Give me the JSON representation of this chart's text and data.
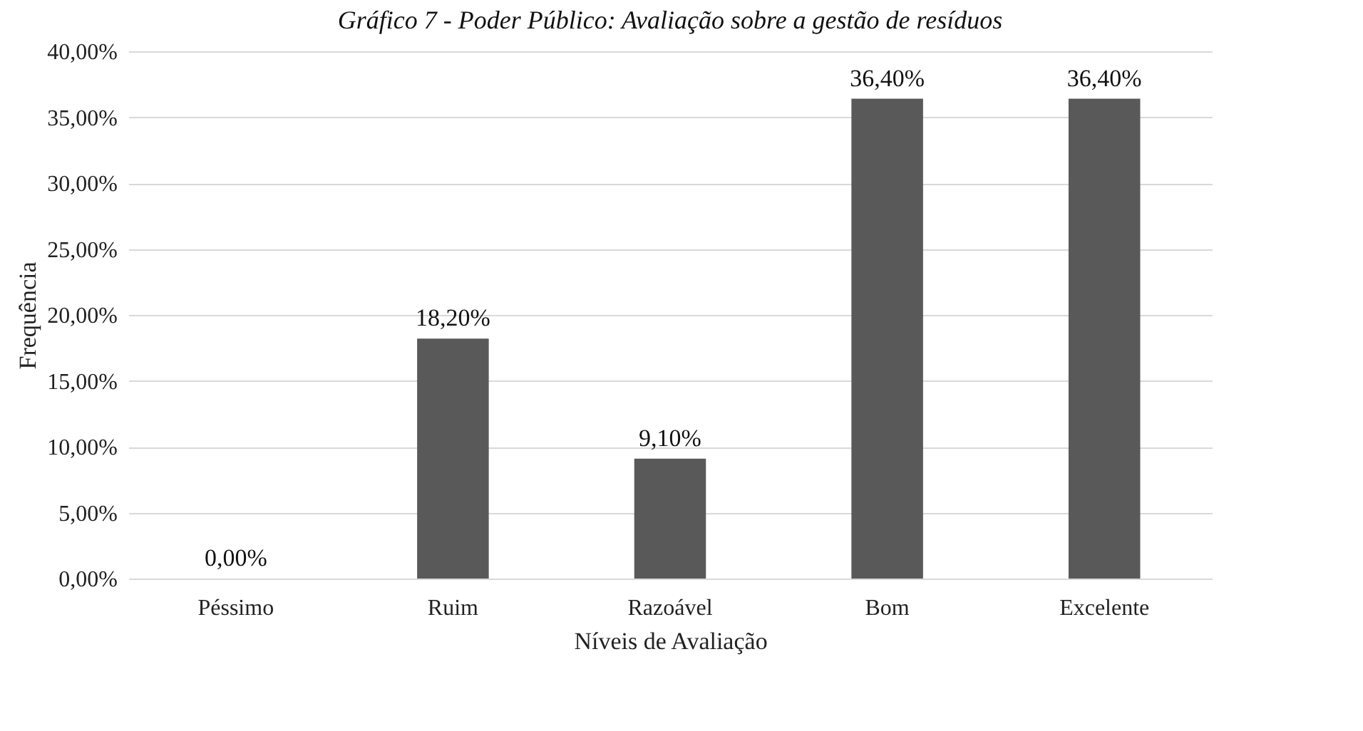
{
  "chart_data": {
    "type": "bar",
    "title": "Gráfico 7 - Poder Público: Avaliação sobre a gestão de resíduos",
    "xlabel": "Níveis de Avaliação",
    "ylabel": "Frequência",
    "categories": [
      "Péssimo",
      "Ruim",
      "Razoável",
      "Bom",
      "Excelente"
    ],
    "values": [
      0,
      18.2,
      9.1,
      36.4,
      36.4
    ],
    "color": "#595959",
    "value_labels": [
      "0,00%",
      "18,20%",
      "9,10%",
      "36,40%",
      "36,40%"
    ],
    "ylim": [
      0,
      40
    ],
    "yticks": [
      {
        "value": 0,
        "label": "0,00%"
      },
      {
        "value": 5,
        "label": "5,00%"
      },
      {
        "value": 10,
        "label": "10,00%"
      },
      {
        "value": 15,
        "label": "15,00%"
      },
      {
        "value": 20,
        "label": "20,00%"
      },
      {
        "value": 25,
        "label": "25,00%"
      },
      {
        "value": 30,
        "label": "30,00%"
      },
      {
        "value": 35,
        "label": "35,00%"
      },
      {
        "value": 40,
        "label": "40,00%"
      }
    ],
    "grid": "y"
  }
}
